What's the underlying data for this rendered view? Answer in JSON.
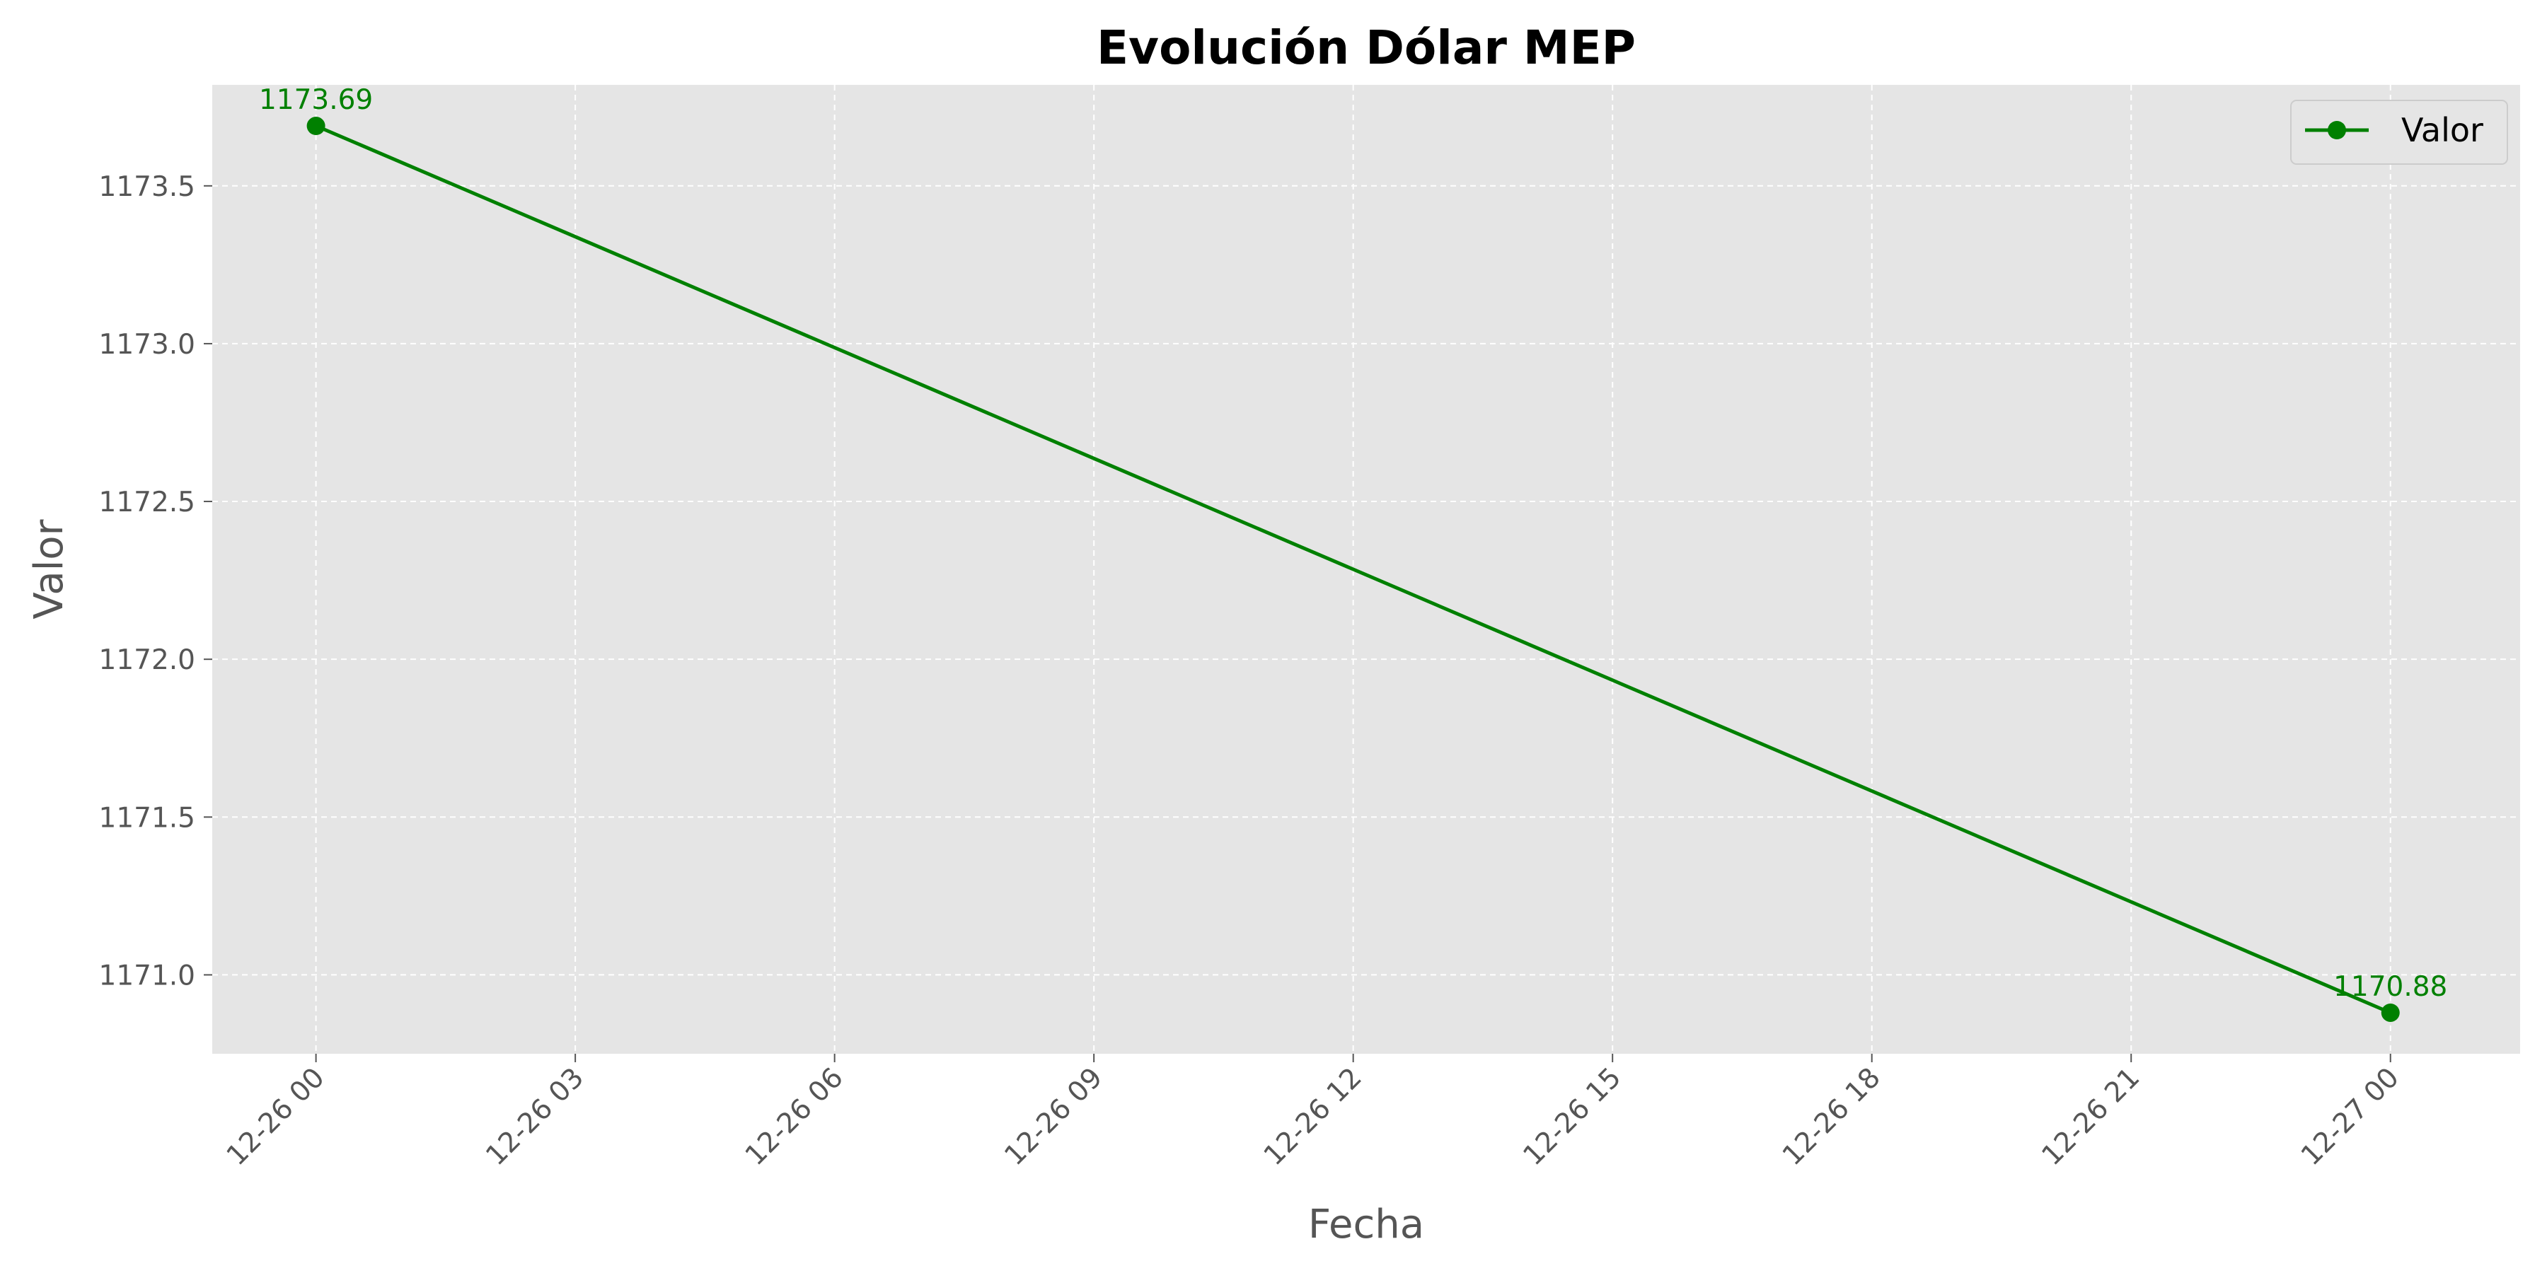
{
  "chart_data": {
    "type": "line",
    "title": "Evolución Dólar MEP",
    "xlabel": "Fecha",
    "ylabel": "Valor",
    "x_ticks": [
      "12-26 00",
      "12-26 03",
      "12-26 06",
      "12-26 09",
      "12-26 12",
      "12-26 15",
      "12-26 18",
      "12-26 21",
      "12-27 00"
    ],
    "y_ticks": [
      "1171.0",
      "1171.5",
      "1172.0",
      "1172.5",
      "1173.0",
      "1173.5"
    ],
    "xlim_hours": [
      -1.2,
      25.5
    ],
    "ylim": [
      1170.75,
      1173.82
    ],
    "grid": true,
    "legend_position": "top-right",
    "series": [
      {
        "name": "Valor",
        "color": "#008000",
        "marker": "circle",
        "points": [
          {
            "x": "12-26 00",
            "hour": 0,
            "y": 1173.69,
            "label": "1173.69"
          },
          {
            "x": "12-27 00",
            "hour": 24,
            "y": 1170.88,
            "label": "1170.88"
          }
        ]
      }
    ]
  }
}
